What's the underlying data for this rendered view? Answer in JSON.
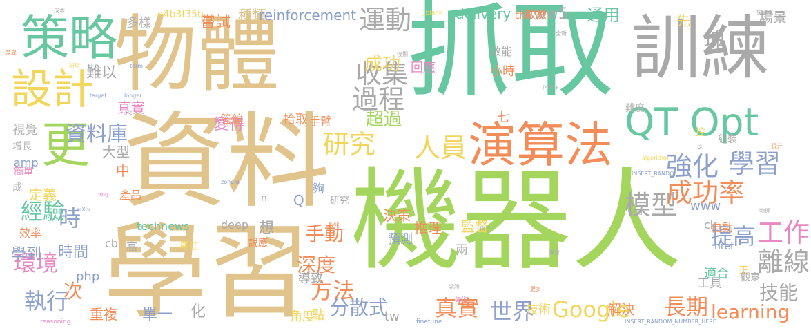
{
  "cloud": {
    "background": "#ffffff",
    "palette": {
      "green": "#66c7a0",
      "lime": "#a4d65e",
      "tan": "#e1c48b",
      "gray": "#a9a9a9",
      "orange": "#f28d5a",
      "blue": "#8da0cb",
      "pink": "#e78ac3",
      "yellow": "#f2d65b",
      "mid": "#b3b3b3"
    },
    "words": [
      {
        "text": "抓取",
        "color": "green"
      },
      {
        "text": "機器人",
        "color": "lime"
      },
      {
        "text": "資料",
        "color": "tan"
      },
      {
        "text": "學習",
        "color": "tan"
      },
      {
        "text": "物體",
        "color": "tan"
      },
      {
        "text": "訓練",
        "color": "gray"
      },
      {
        "text": "策略",
        "color": "green"
      },
      {
        "text": "演算法",
        "color": "orange"
      },
      {
        "text": "設計",
        "color": "yellow"
      },
      {
        "text": "更",
        "color": "lime"
      },
      {
        "text": "QT Opt",
        "color": "green"
      },
      {
        "text": "研究",
        "color": "yellow"
      },
      {
        "text": "人員",
        "color": "yellow"
      },
      {
        "text": "運動",
        "color": "gray"
      },
      {
        "text": "收集",
        "color": "gray"
      },
      {
        "text": "過程",
        "color": "gray"
      },
      {
        "text": "強化",
        "color": "blue"
      },
      {
        "text": "學習",
        "color": "blue"
      },
      {
        "text": "模型",
        "color": "gray"
      },
      {
        "text": "成功率",
        "color": "orange"
      },
      {
        "text": "工作",
        "color": "pink"
      },
      {
        "text": "離線",
        "color": "gray"
      },
      {
        "text": "提高",
        "color": "blue"
      },
      {
        "text": "Google",
        "color": "yellow"
      },
      {
        "text": "長期",
        "color": "orange"
      },
      {
        "text": "方法",
        "color": "orange"
      },
      {
        "text": "真實",
        "color": "orange"
      },
      {
        "text": "世界",
        "color": "blue"
      },
      {
        "text": "時",
        "color": "blue"
      },
      {
        "text": "經驗",
        "color": "green"
      },
      {
        "text": "環境",
        "color": "pink"
      },
      {
        "text": "執行",
        "color": "blue"
      },
      {
        "text": "資料庫",
        "color": "blue"
      },
      {
        "text": "成功",
        "color": "yellow"
      },
      {
        "text": "超過",
        "color": "lime"
      },
      {
        "text": "手動",
        "color": "orange"
      },
      {
        "text": "深度",
        "color": "orange"
      },
      {
        "text": "分散式",
        "color": "blue"
      },
      {
        "text": "learning",
        "color": "orange"
      },
      {
        "text": "技能",
        "color": "gray"
      },
      {
        "text": "學到",
        "color": "blue"
      },
      {
        "text": "時間",
        "color": "blue"
      },
      {
        "text": "嘗試",
        "color": "orange"
      },
      {
        "text": "種類",
        "color": "tan"
      },
      {
        "text": "reinforcement",
        "color": "blue"
      },
      {
        "text": "delivery",
        "color": "green"
      },
      {
        "text": "www5",
        "color": "gray"
      },
      {
        "text": "通用",
        "color": "green"
      },
      {
        "text": "塊",
        "color": "gray"
      },
      {
        "text": "先",
        "color": "yellow"
      },
      {
        "text": "場景",
        "color": "gray"
      },
      {
        "text": "比較數",
        "color": "orange"
      },
      {
        "text": "a4b3f35b",
        "color": "yellow"
      },
      {
        "text": "多樣",
        "color": "mid"
      },
      {
        "text": "真實",
        "color": "pink"
      },
      {
        "text": "難以",
        "color": "gray"
      },
      {
        "text": "變得",
        "color": "pink"
      },
      {
        "text": "大型",
        "color": "gray"
      },
      {
        "text": "視覺",
        "color": "mid"
      },
      {
        "text": "增長",
        "color": "mid"
      },
      {
        "text": "amp",
        "color": "blue"
      },
      {
        "text": "中",
        "color": "orange"
      },
      {
        "text": "定義",
        "color": "yellow"
      },
      {
        "text": "效率",
        "color": "orange"
      },
      {
        "text": "technews",
        "color": "green"
      },
      {
        "text": "deep",
        "color": "gray"
      },
      {
        "text": "想",
        "color": "gray"
      },
      {
        "text": "導致",
        "color": "gray"
      },
      {
        "text": "研究",
        "color": "gray"
      },
      {
        "text": "推理",
        "color": "orange"
      },
      {
        "text": "監督",
        "color": "yellow"
      },
      {
        "text": "決策",
        "color": "orange"
      },
      {
        "text": "預測",
        "color": "blue"
      },
      {
        "text": "兩",
        "color": "mid"
      },
      {
        "text": "php",
        "color": "blue"
      },
      {
        "text": "次",
        "color": "orange"
      },
      {
        "text": "重複",
        "color": "orange"
      },
      {
        "text": "單一",
        "color": "blue"
      },
      {
        "text": "化",
        "color": "gray"
      },
      {
        "text": "角度",
        "color": "yellow"
      },
      {
        "text": "tw",
        "color": "gray"
      },
      {
        "text": "解決",
        "color": "orange"
      },
      {
        "text": "技術",
        "color": "yellow"
      },
      {
        "text": "工具",
        "color": "gray"
      },
      {
        "text": "適合",
        "color": "green"
      },
      {
        "text": "www",
        "color": "blue"
      },
      {
        "text": "自動",
        "color": "orange"
      },
      {
        "text": "小時",
        "color": "orange"
      },
      {
        "text": "效能",
        "color": "gray"
      },
      {
        "text": "回應",
        "color": "pink"
      },
      {
        "text": "拾取",
        "color": "orange"
      },
      {
        "text": "手臂",
        "color": "orange"
      },
      {
        "text": "七",
        "color": "orange"
      },
      {
        "text": "cb",
        "color": "gray"
      },
      {
        "text": "高",
        "color": "gray"
      },
      {
        "text": "點",
        "color": "yellow"
      },
      {
        "text": "夠",
        "color": "blue"
      },
      {
        "text": "Q",
        "color": "blue"
      },
      {
        "text": "n",
        "color": "gray"
      },
      {
        "text": "ck",
        "color": "gray"
      },
      {
        "text": "管線",
        "color": "orange"
      },
      {
        "text": "難度",
        "color": "mid"
      },
      {
        "text": "控",
        "color": "yellow"
      },
      {
        "text": "組裝",
        "color": "gray"
      },
      {
        "text": "產品",
        "color": "orange"
      },
      {
        "text": "簡單",
        "color": "pink"
      },
      {
        "text": "成",
        "color": "mid"
      },
      {
        "text": "最佳",
        "color": "yellow"
      },
      {
        "text": "說應",
        "color": "orange"
      },
      {
        "text": "href",
        "color": "blue"
      },
      {
        "text": "正",
        "color": "yellow"
      },
      {
        "text": "觀察",
        "color": "gray"
      },
      {
        "text": "a",
        "color": "gray"
      },
      {
        "text": "INSERT_RANDOM_NUMBER_HERE",
        "color": "blue"
      },
      {
        "text": "finetune",
        "color": "blue"
      },
      {
        "text": "reasoning",
        "color": "pink"
      },
      {
        "text": "_blank",
        "color": "yellow"
      },
      {
        "text": "成本",
        "color": "mid"
      },
      {
        "text": "後期",
        "color": "gray"
      },
      {
        "text": "差異",
        "color": "orange"
      },
      {
        "text": "新型",
        "color": "yellow"
      },
      {
        "text": "term",
        "color": "blue"
      },
      {
        "text": "target",
        "color": "blue"
      },
      {
        "text": "longer",
        "color": "blue"
      },
      {
        "text": "policy",
        "color": "gray"
      },
      {
        "text": "src",
        "color": "gray"
      },
      {
        "text": "img",
        "color": "pink"
      },
      {
        "text": "arXiv",
        "color": "blue"
      },
      {
        "text": "zoneid",
        "color": "blue"
      },
      {
        "text": "algorithm",
        "color": "yellow"
      },
      {
        "text": "INSERT_RANDO",
        "color": "blue"
      },
      {
        "text": "filted",
        "color": "gray"
      },
      {
        "text": "聲音",
        "color": "gray"
      },
      {
        "text": "例子",
        "color": "gray"
      },
      {
        "text": "全新",
        "color": "gray"
      },
      {
        "text": "架構化",
        "color": "gray"
      },
      {
        "text": "提升",
        "color": "orange"
      },
      {
        "text": "變化",
        "color": "pink"
      },
      {
        "text": "物理",
        "color": "mid"
      },
      {
        "text": "系列",
        "color": "orange"
      },
      {
        "text": "認證",
        "color": "mid"
      },
      {
        "text": "更多",
        "color": "orange"
      }
    ]
  }
}
